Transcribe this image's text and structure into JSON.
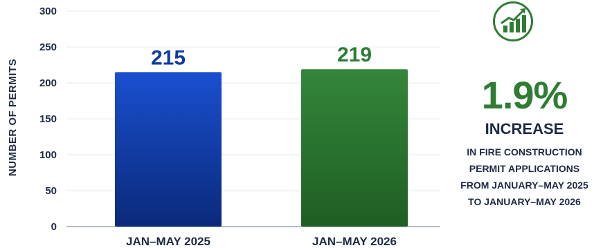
{
  "chart_data": {
    "type": "bar",
    "ylabel": "NUMBER OF PERMITS",
    "ylim": [
      0,
      300
    ],
    "yticks": [
      0,
      50,
      100,
      150,
      200,
      250,
      300
    ],
    "grid": true,
    "categories": [
      "JAN–MAY 2025",
      "JAN–MAY 2026"
    ],
    "values": [
      215,
      219
    ],
    "value_labels": [
      "215",
      "219"
    ],
    "bar_colors": [
      "#0d3aa8",
      "#2e7d32"
    ]
  },
  "callout": {
    "icon": "growth-chart-icon",
    "accent_color": "#2e7d32",
    "percent": "1.9%",
    "headline": "INCREASE",
    "lines": [
      "IN FIRE CONSTRUCTION",
      "PERMIT APPLICATIONS",
      "FROM JANUARY–MAY 2025",
      "TO JANUARY–MAY 2026"
    ]
  }
}
